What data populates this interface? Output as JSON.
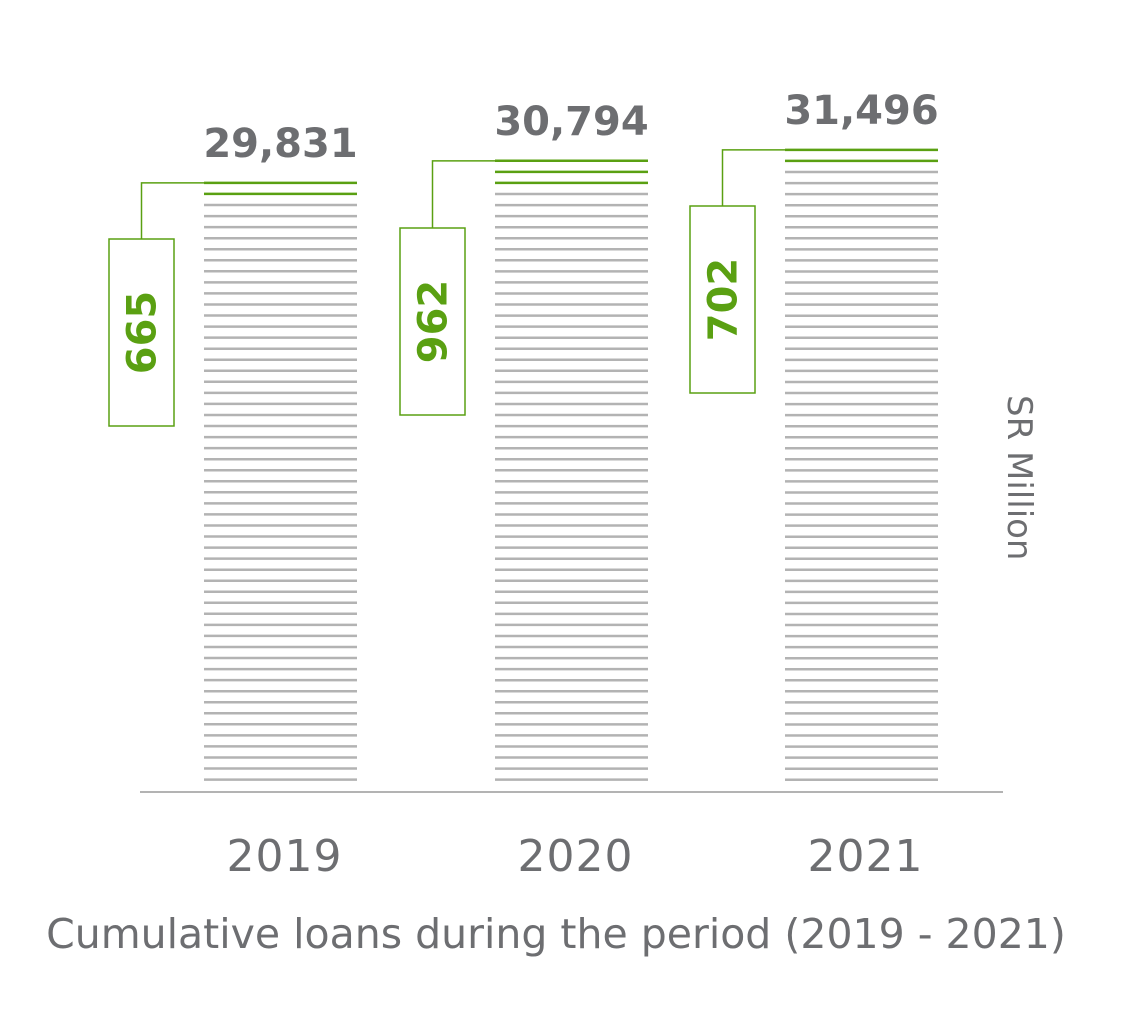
{
  "chart_data": {
    "type": "bar",
    "title": "",
    "caption": "Cumulative loans during the period (2019 - 2021)",
    "unit_label": "SR Million",
    "categories": [
      "2019",
      "2020",
      "2021"
    ],
    "series": [
      {
        "values": [
          29831,
          30794,
          31496
        ],
        "value_labels": [
          "29,831",
          "30,794",
          "31,496"
        ]
      },
      {
        "values": [
          665,
          962,
          702
        ],
        "value_labels": [
          "665",
          "962",
          "702"
        ]
      }
    ],
    "ylim": [
      0,
      31496
    ],
    "grid": false,
    "legend": "none",
    "colors": {
      "bar_lines": "#b3b3b3",
      "highlight": "#5aa012",
      "text": "#6d6e71",
      "axis": "#b3b3b3"
    }
  }
}
